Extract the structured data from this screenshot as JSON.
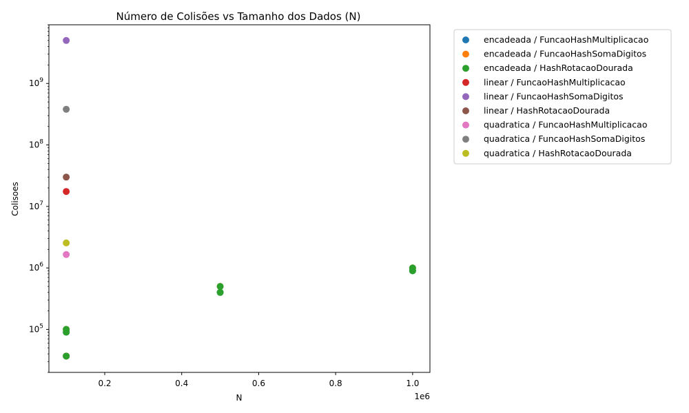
{
  "chart_data": {
    "type": "scatter",
    "title": "Número de Colisões vs Tamanho dos Dados (N)",
    "xlabel": "N",
    "ylabel": "Colisoes",
    "x_offset_label": "1e6",
    "x_scale_factor": 1000000,
    "xlim": [
      55000,
      1045000
    ],
    "ylim": [
      20000,
      9000000000
    ],
    "yscale": "log",
    "x_ticks": [
      {
        "value": 200000,
        "label": "0.2"
      },
      {
        "value": 400000,
        "label": "0.4"
      },
      {
        "value": 600000,
        "label": "0.6"
      },
      {
        "value": 800000,
        "label": "0.8"
      },
      {
        "value": 1000000,
        "label": "1.0"
      }
    ],
    "y_ticks": [
      {
        "value": 100000,
        "base": "10",
        "exp": "5"
      },
      {
        "value": 1000000,
        "base": "10",
        "exp": "6"
      },
      {
        "value": 10000000,
        "base": "10",
        "exp": "7"
      },
      {
        "value": 100000000,
        "base": "10",
        "exp": "8"
      },
      {
        "value": 1000000000,
        "base": "10",
        "exp": "9"
      }
    ],
    "legend_position": "outside-right",
    "series": [
      {
        "name": "encadeada / FuncaoHashMultiplicacao",
        "color": "#1f77b4",
        "points": [
          [
            100000,
            36800
          ],
          [
            100000,
            90000
          ],
          [
            500000,
            400000
          ],
          [
            1000000,
            900000
          ]
        ]
      },
      {
        "name": "encadeada / FuncaoHashSomaDigitos",
        "color": "#ff7f0e",
        "points": [
          [
            100000,
            36800
          ],
          [
            100000,
            100000
          ],
          [
            500000,
            500000
          ],
          [
            1000000,
            1000000
          ]
        ]
      },
      {
        "name": "encadeada / HashRotacaoDourada",
        "color": "#2ca02c",
        "points": [
          [
            100000,
            36800
          ],
          [
            100000,
            90000
          ],
          [
            100000,
            100000
          ],
          [
            500000,
            400000
          ],
          [
            500000,
            500000
          ],
          [
            1000000,
            900000
          ],
          [
            1000000,
            1000000
          ]
        ]
      },
      {
        "name": "linear / FuncaoHashMultiplicacao",
        "color": "#d62728",
        "points": [
          [
            100000,
            17500000
          ]
        ]
      },
      {
        "name": "linear / FuncaoHashSomaDigitos",
        "color": "#9467bd",
        "points": [
          [
            100000,
            5000000000
          ]
        ]
      },
      {
        "name": "linear / HashRotacaoDourada",
        "color": "#8c564b",
        "points": [
          [
            100000,
            30000000
          ]
        ]
      },
      {
        "name": "quadratica / FuncaoHashMultiplicacao",
        "color": "#e377c2",
        "points": [
          [
            100000,
            1650000
          ]
        ]
      },
      {
        "name": "quadratica / FuncaoHashSomaDigitos",
        "color": "#7f7f7f",
        "points": [
          [
            100000,
            380000000
          ]
        ]
      },
      {
        "name": "quadratica / HashRotacaoDourada",
        "color": "#bcbd22",
        "points": [
          [
            100000,
            2550000
          ]
        ]
      }
    ]
  }
}
